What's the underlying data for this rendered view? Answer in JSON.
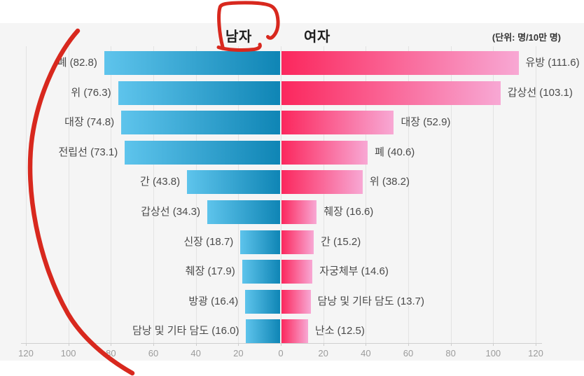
{
  "header": {
    "male_title": "남자",
    "female_title": "여자",
    "unit_label": "(단위: 명/10만 명)"
  },
  "colors": {
    "panel_bg": "#f5f5f5",
    "grid": "#e3e3e3",
    "axis": "#cfcfcf",
    "tick_text": "#9b9b9b",
    "label_text": "#4a4a4a",
    "male_gradient_start": "#5ec4ec",
    "male_gradient_end": "#0f85b5",
    "female_gradient_start": "#fb275d",
    "female_gradient_end": "#f8a8d4",
    "annotation_red": "#d8281e"
  },
  "chart_data": {
    "type": "bar",
    "orientation": "horizontal-bidirectional",
    "title": "",
    "unit": "명/10만 명",
    "axis_max": 120,
    "axis_ticks": [
      "120",
      "100",
      "80",
      "60",
      "40",
      "20",
      "0",
      "20",
      "40",
      "60",
      "80",
      "100",
      "120"
    ],
    "grid": true,
    "series": [
      {
        "name": "남자",
        "side": "left",
        "points": [
          {
            "category": "폐",
            "value": 82.8,
            "label": "폐 (82.8)"
          },
          {
            "category": "위",
            "value": 76.3,
            "label": "위 (76.3)"
          },
          {
            "category": "대장",
            "value": 74.8,
            "label": "대장 (74.8)"
          },
          {
            "category": "전립선",
            "value": 73.1,
            "label": "전립선 (73.1)"
          },
          {
            "category": "간",
            "value": 43.8,
            "label": "간 (43.8)"
          },
          {
            "category": "갑상선",
            "value": 34.3,
            "label": "갑상선 (34.3)"
          },
          {
            "category": "신장",
            "value": 18.7,
            "label": "신장 (18.7)"
          },
          {
            "category": "췌장",
            "value": 17.9,
            "label": "췌장 (17.9)"
          },
          {
            "category": "방광",
            "value": 16.4,
            "label": "방광 (16.4)"
          },
          {
            "category": "담낭 및 기타 담도",
            "value": 16.0,
            "label": "담낭 및 기타 담도 (16.0)"
          }
        ]
      },
      {
        "name": "여자",
        "side": "right",
        "points": [
          {
            "category": "유방",
            "value": 111.6,
            "label": "유방 (111.6)"
          },
          {
            "category": "갑상선",
            "value": 103.1,
            "label": "갑상선 (103.1)"
          },
          {
            "category": "대장",
            "value": 52.9,
            "label": "대장 (52.9)"
          },
          {
            "category": "폐",
            "value": 40.6,
            "label": "폐 (40.6)"
          },
          {
            "category": "위",
            "value": 38.2,
            "label": "위 (38.2)"
          },
          {
            "category": "췌장",
            "value": 16.6,
            "label": "췌장 (16.6)"
          },
          {
            "category": "간",
            "value": 15.2,
            "label": "간 (15.2)"
          },
          {
            "category": "자궁체부",
            "value": 14.6,
            "label": "자궁체부 (14.6)"
          },
          {
            "category": "담낭 및 기타 담도",
            "value": 13.7,
            "label": "담낭 및 기타 담도 (13.7)"
          },
          {
            "category": "난소",
            "value": 12.5,
            "label": "난소 (12.5)"
          }
        ]
      }
    ]
  },
  "annotations": {
    "color": "#d8281e",
    "circled_text": "남자",
    "marks": [
      "hand-drawn circle around male title",
      "long hand-drawn curve along left side"
    ]
  }
}
